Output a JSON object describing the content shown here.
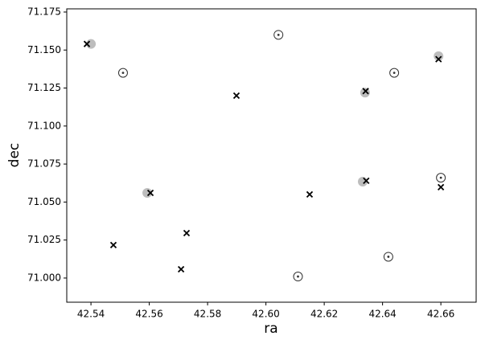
{
  "chart_data": {
    "type": "scatter",
    "xlabel": "ra",
    "ylabel": "dec",
    "xlim": [
      42.5317,
      42.6721
    ],
    "ylim": [
      70.9841,
      71.1771
    ],
    "xticks": [
      42.54,
      42.56,
      42.58,
      {
        "value": 42.6,
        "label": "42.60"
      },
      42.62,
      42.64,
      42.66
    ],
    "yticks": [
      {
        "value": 71.0,
        "label": "71.000"
      },
      71.025,
      {
        "value": 71.05,
        "label": "71.050"
      },
      71.075,
      {
        "value": 71.1,
        "label": "71.100"
      },
      71.125,
      {
        "value": 71.15,
        "label": "71.150"
      },
      71.175
    ],
    "grid": false,
    "series": [
      {
        "marker": "filled-circle",
        "color": "#bdbdbd",
        "x": [
          42.54,
          42.5593,
          42.634,
          42.6332,
          42.6592
        ],
        "values": [
          71.154,
          71.056,
          71.122,
          71.0634,
          71.146
        ]
      },
      {
        "marker": "dotted-circle",
        "color": "#333333",
        "x": [
          42.551,
          42.6043,
          42.611,
          42.644,
          42.642,
          42.66
        ],
        "values": [
          71.135,
          71.16,
          71.001,
          71.135,
          71.014,
          71.066
        ]
      },
      {
        "marker": "x",
        "color": "#000000",
        "x": [
          42.5386,
          42.5604,
          42.5477,
          42.5728,
          42.5709,
          42.5899,
          42.615,
          42.6342,
          42.6344,
          42.6592,
          42.66
        ],
        "values": [
          71.154,
          71.056,
          71.0217,
          71.0296,
          71.0058,
          71.12,
          71.055,
          71.123,
          71.064,
          71.144,
          71.0598
        ]
      }
    ]
  }
}
